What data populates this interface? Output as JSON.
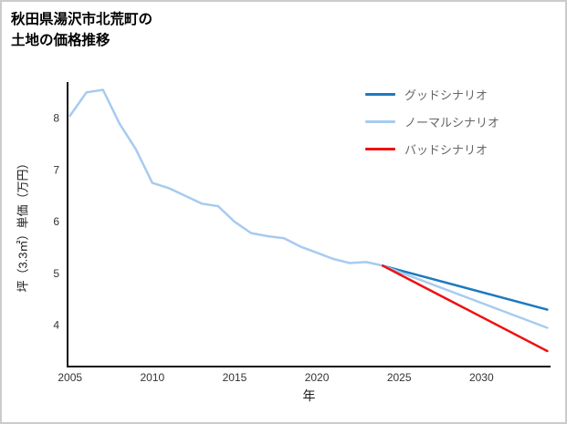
{
  "page": {
    "background": "#ffffff",
    "border_color": "#cccccc"
  },
  "title": {
    "line1": "秋田県湯沢市北荒町の",
    "line2": "土地の価格推移"
  },
  "axes": {
    "x_label": "年",
    "y_label": "坪（3.3㎡）単価（万円）",
    "x_ticks": [
      "2005",
      "2010",
      "2015",
      "2020",
      "2025",
      "2030"
    ],
    "y_ticks": [
      "4",
      "5",
      "6",
      "7",
      "8"
    ],
    "axis_color": "#111111"
  },
  "legend": [
    {
      "label": "グッドシナリオ",
      "color": "#1c79c0"
    },
    {
      "label": "ノーマルシナリオ",
      "color": "#a7cbf0"
    },
    {
      "label": "バッドシナリオ",
      "color": "#ee1111"
    }
  ],
  "chart_data": {
    "type": "line",
    "title": "秋田県湯沢市北荒町の土地の価格推移",
    "xlabel": "年",
    "ylabel": "坪（3.3㎡）単価（万円）",
    "xlim": [
      2004.85,
      2034.2
    ],
    "ylim": [
      3.2,
      8.7
    ],
    "grid": false,
    "legend_position": "top-right",
    "history": {
      "color": "#a7cbf0",
      "x": [
        2005,
        2006,
        2007,
        2008,
        2009,
        2010,
        2011,
        2012,
        2013,
        2014,
        2015,
        2016,
        2017,
        2018,
        2019,
        2020,
        2021,
        2022,
        2023,
        2024
      ],
      "values": [
        8.05,
        8.5,
        8.55,
        7.9,
        7.4,
        6.75,
        6.65,
        6.5,
        6.35,
        6.3,
        6.0,
        5.78,
        5.72,
        5.68,
        5.52,
        5.4,
        5.28,
        5.2,
        5.22,
        5.15
      ]
    },
    "series": [
      {
        "name": "グッドシナリオ",
        "color": "#1c79c0",
        "x": [
          2024,
          2034
        ],
        "values": [
          5.15,
          4.3
        ]
      },
      {
        "name": "ノーマルシナリオ",
        "color": "#a7cbf0",
        "x": [
          2024,
          2034
        ],
        "values": [
          5.15,
          3.95
        ]
      },
      {
        "name": "バッドシナリオ",
        "color": "#ee1111",
        "x": [
          2024,
          2034
        ],
        "values": [
          5.15,
          3.5
        ]
      }
    ]
  }
}
